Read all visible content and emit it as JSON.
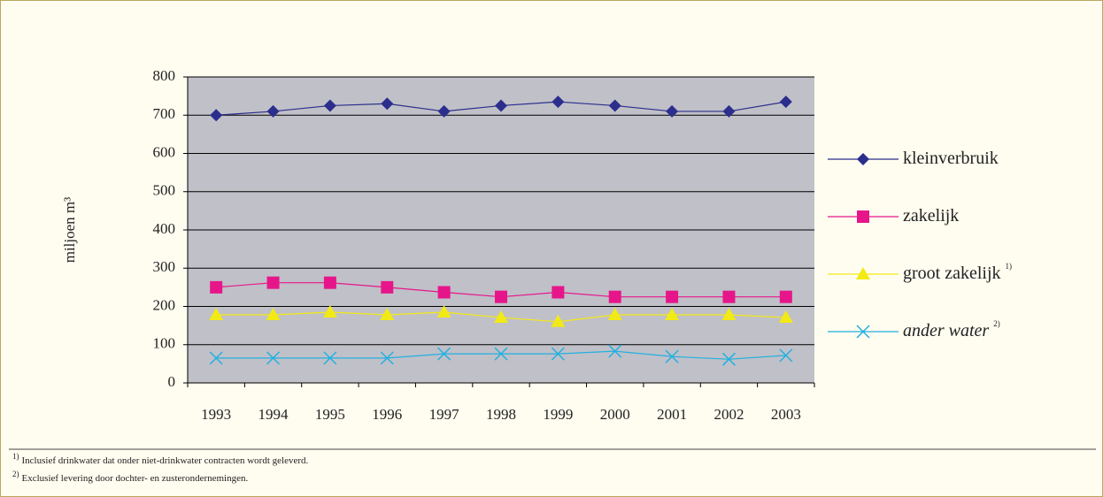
{
  "chart_data": {
    "type": "line",
    "ylabel": "miljoen m³",
    "categories": [
      "1993",
      "1994",
      "1995",
      "1996",
      "1997",
      "1998",
      "1999",
      "2000",
      "2001",
      "2002",
      "2003"
    ],
    "series": [
      {
        "name": "kleinverbruik",
        "color": "#2b2e8c",
        "marker": "diamond",
        "values": [
          700,
          710,
          725,
          730,
          710,
          725,
          735,
          725,
          710,
          710,
          735
        ]
      },
      {
        "name": "zakelijk",
        "color": "#e6168a",
        "marker": "square",
        "values": [
          250,
          262,
          262,
          250,
          237,
          225,
          237,
          225,
          225,
          225,
          225
        ]
      },
      {
        "name": "groot zakelijk",
        "note": "1)",
        "color": "#f2ea14",
        "marker": "triangle",
        "values": [
          178,
          178,
          185,
          178,
          185,
          171,
          160,
          178,
          178,
          178,
          171
        ]
      },
      {
        "name": "ander water",
        "note": "2)",
        "italic": true,
        "color": "#22b0e0",
        "marker": "x",
        "values": [
          65,
          65,
          65,
          65,
          76,
          76,
          76,
          83,
          69,
          62,
          72
        ]
      }
    ],
    "ylim": [
      0,
      800
    ],
    "yticks": [
      0,
      100,
      200,
      300,
      400,
      500,
      600,
      700,
      800
    ],
    "grid": true,
    "legend": "right",
    "footnotes": [
      {
        "marker": "1)",
        "text": "Inclusief drinkwater dat onder niet-drinkwater contracten wordt geleverd."
      },
      {
        "marker": "2)",
        "text": "Exclusief levering door dochter- en zusterondernemingen."
      }
    ]
  }
}
